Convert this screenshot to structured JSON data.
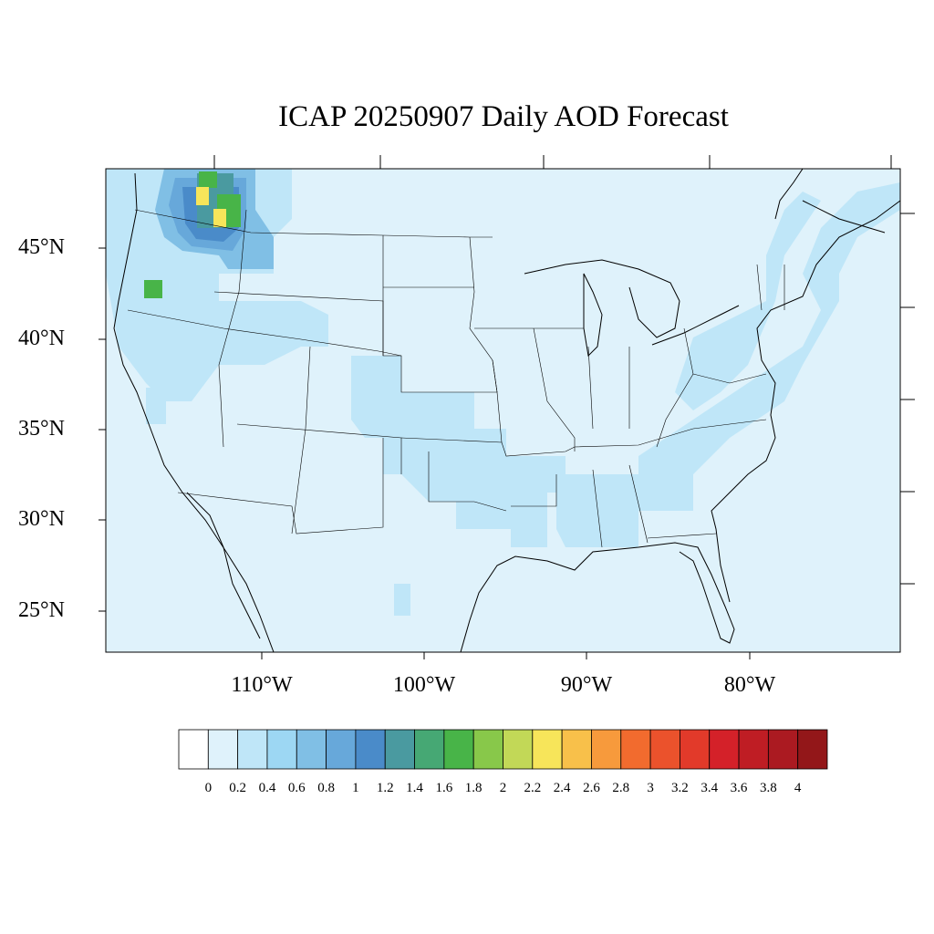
{
  "title": "ICAP 20250907 Daily AOD Forecast",
  "lat_labels": [
    "45°N",
    "40°N",
    "35°N",
    "30°N",
    "25°N"
  ],
  "lon_labels": [
    "110°W",
    "100°W",
    "90°W",
    "80°W"
  ],
  "colorbar": {
    "labels": [
      "0",
      "0.2",
      "0.4",
      "0.6",
      "0.8",
      "1",
      "1.2",
      "1.4",
      "1.6",
      "1.8",
      "2",
      "2.2",
      "2.4",
      "2.6",
      "2.8",
      "3",
      "3.2",
      "3.4",
      "3.6",
      "3.8",
      "4"
    ],
    "colors": [
      "#ffffff",
      "#dff2fb",
      "#bfe6f8",
      "#9dd7f3",
      "#80bfe5",
      "#67a8da",
      "#4a8bc9",
      "#4a9aa0",
      "#46a874",
      "#48b448",
      "#88c84a",
      "#c2d857",
      "#f7e55a",
      "#f8c04a",
      "#f79a3c",
      "#f26b2e",
      "#eb522c",
      "#e23a2a",
      "#d42129",
      "#bf1d24",
      "#ab1a21",
      "#931719"
    ]
  },
  "map_data": {
    "background_color": "#dff2fb",
    "field_colors": {
      "0.2-0.4": "#bfe6f8",
      "0.6-0.8": "#80bfe5",
      "0.8-1.0": "#67a8da",
      "1.0-1.2": "#4a8bc9",
      "1.2-1.4": "#4a9aa0",
      "1.6-1.8": "#48b448",
      "2.2-2.4": "#f7e55a"
    }
  }
}
